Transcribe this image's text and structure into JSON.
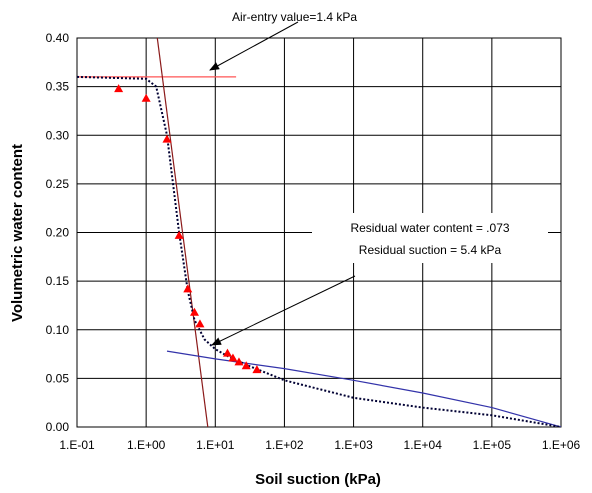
{
  "chart_data": {
    "type": "scatter",
    "xlabel": "Soil suction (kPa)",
    "ylabel": "Volumetric water content",
    "x_scale": "log",
    "xlim": [
      0.1,
      1000000
    ],
    "ylim": [
      0.0,
      0.4
    ],
    "grid": true,
    "x_tick_labels": [
      "1.E-01",
      "1.E+00",
      "1.E+01",
      "1.E+02",
      "1.E+03",
      "1.E+04",
      "1.E+05",
      "1.E+06"
    ],
    "x_tick_values": [
      0.1,
      1,
      10,
      100,
      1000,
      10000,
      100000,
      1000000
    ],
    "y_tick_labels": [
      "0.00",
      "0.05",
      "0.10",
      "0.15",
      "0.20",
      "0.25",
      "0.30",
      "0.35",
      "0.40"
    ],
    "y_tick_values": [
      0.0,
      0.05,
      0.1,
      0.15,
      0.2,
      0.25,
      0.3,
      0.35,
      0.4
    ],
    "series": [
      {
        "style": "markers",
        "color": "#ff0000",
        "marker": "triangle",
        "x": [
          0.4,
          1.0,
          2.0,
          3.0,
          4.0,
          5.0,
          6.0,
          15,
          18,
          22,
          28,
          40
        ],
        "y": [
          0.348,
          0.338,
          0.296,
          0.197,
          0.142,
          0.118,
          0.106,
          0.076,
          0.071,
          0.067,
          0.063,
          0.059
        ]
      },
      {
        "style": "dotted-line",
        "color": "#000033",
        "x": [
          0.1,
          1.0,
          1.4,
          2.0,
          3.0,
          4.0,
          5.0,
          7.0,
          10,
          15,
          30,
          100,
          1000,
          10000,
          100000,
          1000000
        ],
        "y": [
          0.36,
          0.358,
          0.35,
          0.3,
          0.2,
          0.14,
          0.11,
          0.09,
          0.08,
          0.073,
          0.063,
          0.048,
          0.03,
          0.02,
          0.012,
          0.0
        ]
      },
      {
        "style": "line",
        "color": "#3333aa",
        "x": [
          2,
          10,
          100,
          1000,
          10000,
          100000,
          1000000
        ],
        "y": [
          0.078,
          0.07,
          0.06,
          0.048,
          0.035,
          0.02,
          0.0
        ]
      },
      {
        "style": "line",
        "color": "#ff5555",
        "x": [
          0.1,
          20
        ],
        "y": [
          0.36,
          0.36
        ]
      },
      {
        "style": "line",
        "color": "#8b1a1a",
        "x": [
          1.45,
          7.8
        ],
        "y": [
          0.4,
          0.0
        ]
      }
    ],
    "annotations": [
      {
        "text": "Air-entry value=1.4 kPa",
        "arrow_to": [
          1.4,
          0.36
        ]
      },
      {
        "text": "Residual water content = .073",
        "arrow_to": [
          5.4,
          0.073
        ]
      },
      {
        "text": "Residual suction = 5.4 kPa"
      }
    ]
  }
}
